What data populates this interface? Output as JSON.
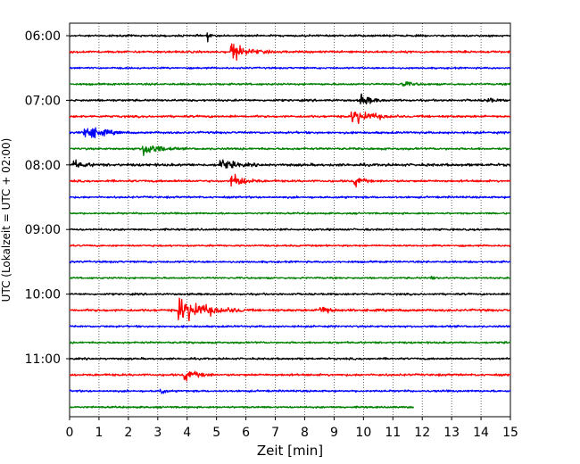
{
  "chart_data": {
    "type": "line",
    "title": "",
    "xlabel": "Zeit  [min]",
    "ylabel": "UTC (Lokalzeit = UTC + 02:00)",
    "xlim": [
      0,
      15
    ],
    "x_ticks": [
      "0",
      "1",
      "2",
      "3",
      "4",
      "5",
      "6",
      "7",
      "8",
      "9",
      "10",
      "11",
      "12",
      "13",
      "14",
      "15"
    ],
    "y_ticks": [
      "06:00",
      "07:00",
      "08:00",
      "09:00",
      "10:00",
      "11:00"
    ],
    "grid": "vertical dotted",
    "trace_colors": [
      "#000000",
      "#ff0000",
      "#0000ff",
      "#008000"
    ],
    "traces": [
      {
        "start": "06:00",
        "color": "#000000",
        "end_min": 15,
        "noise": 0.9,
        "events": [
          {
            "t": 4.7,
            "amp": 5,
            "dur": 0.15
          }
        ]
      },
      {
        "start": "06:15",
        "color": "#ff0000",
        "end_min": 15,
        "noise": 1.0,
        "events": [
          {
            "t": 5.5,
            "amp": 9,
            "dur": 1.3
          }
        ]
      },
      {
        "start": "06:30",
        "color": "#0000ff",
        "end_min": 15,
        "noise": 0.8,
        "events": []
      },
      {
        "start": "06:45",
        "color": "#008000",
        "end_min": 15,
        "noise": 0.9,
        "events": [
          {
            "t": 11.3,
            "amp": 3,
            "dur": 0.8
          }
        ]
      },
      {
        "start": "07:00",
        "color": "#000000",
        "end_min": 15,
        "noise": 1.0,
        "events": [
          {
            "t": 9.9,
            "amp": 6,
            "dur": 0.9
          },
          {
            "t": 14.2,
            "amp": 3,
            "dur": 0.5
          }
        ]
      },
      {
        "start": "07:15",
        "color": "#ff0000",
        "end_min": 15,
        "noise": 1.0,
        "events": [
          {
            "t": 9.6,
            "amp": 8,
            "dur": 1.6
          }
        ]
      },
      {
        "start": "07:30",
        "color": "#0000ff",
        "end_min": 15,
        "noise": 1.0,
        "events": [
          {
            "t": 0.5,
            "amp": 9,
            "dur": 1.3
          }
        ]
      },
      {
        "start": "07:45",
        "color": "#008000",
        "end_min": 15,
        "noise": 1.0,
        "events": [
          {
            "t": 2.5,
            "amp": 8,
            "dur": 1.2
          }
        ]
      },
      {
        "start": "08:00",
        "color": "#000000",
        "end_min": 15,
        "noise": 1.2,
        "events": [
          {
            "t": 0.1,
            "amp": 4,
            "dur": 0.9
          },
          {
            "t": 5.1,
            "amp": 5,
            "dur": 1.3
          }
        ]
      },
      {
        "start": "08:15",
        "color": "#ff0000",
        "end_min": 15,
        "noise": 1.0,
        "events": [
          {
            "t": 5.5,
            "amp": 7,
            "dur": 1.1
          },
          {
            "t": 9.7,
            "amp": 6,
            "dur": 0.6
          }
        ]
      },
      {
        "start": "08:30",
        "color": "#0000ff",
        "end_min": 15,
        "noise": 0.9,
        "events": []
      },
      {
        "start": "08:45",
        "color": "#008000",
        "end_min": 15,
        "noise": 0.8,
        "events": []
      },
      {
        "start": "09:00",
        "color": "#000000",
        "end_min": 15,
        "noise": 0.9,
        "events": []
      },
      {
        "start": "09:15",
        "color": "#ff0000",
        "end_min": 15,
        "noise": 0.8,
        "events": []
      },
      {
        "start": "09:30",
        "color": "#0000ff",
        "end_min": 15,
        "noise": 0.9,
        "events": []
      },
      {
        "start": "09:45",
        "color": "#008000",
        "end_min": 15,
        "noise": 0.8,
        "events": [
          {
            "t": 12.3,
            "amp": 3,
            "dur": 0.3
          }
        ]
      },
      {
        "start": "10:00",
        "color": "#000000",
        "end_min": 15,
        "noise": 0.9,
        "events": []
      },
      {
        "start": "10:15",
        "color": "#ff0000",
        "end_min": 15,
        "noise": 1.1,
        "events": [
          {
            "t": 3.7,
            "amp": 13,
            "dur": 2.3
          },
          {
            "t": 8.5,
            "amp": 6,
            "dur": 0.7
          }
        ]
      },
      {
        "start": "10:30",
        "color": "#0000ff",
        "end_min": 15,
        "noise": 0.9,
        "events": []
      },
      {
        "start": "10:45",
        "color": "#008000",
        "end_min": 15,
        "noise": 0.9,
        "events": []
      },
      {
        "start": "11:00",
        "color": "#000000",
        "end_min": 15,
        "noise": 0.9,
        "events": []
      },
      {
        "start": "11:15",
        "color": "#ff0000",
        "end_min": 15,
        "noise": 1.0,
        "events": [
          {
            "t": 3.9,
            "amp": 6,
            "dur": 1.0
          }
        ]
      },
      {
        "start": "11:30",
        "color": "#0000ff",
        "end_min": 15,
        "noise": 0.9,
        "events": [
          {
            "t": 3.1,
            "amp": 5,
            "dur": 0.3
          }
        ]
      },
      {
        "start": "11:45",
        "color": "#008000",
        "end_min": 11.7,
        "noise": 0.8,
        "events": []
      }
    ]
  }
}
